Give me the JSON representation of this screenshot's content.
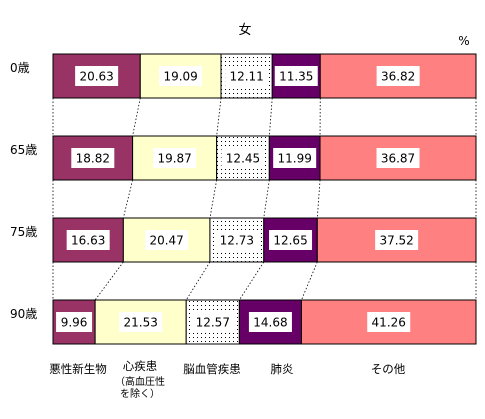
{
  "chart_data": {
    "type": "bar",
    "orientation": "horizontal",
    "stacked": "100%",
    "title": "女",
    "unit": "%",
    "rows": [
      "0歳",
      "65歳",
      "75歳",
      "90歳"
    ],
    "series": [
      {
        "name": "悪性新生物",
        "values": [
          20.63,
          18.82,
          16.63,
          9.96
        ],
        "color": "#993366",
        "pattern": "solid"
      },
      {
        "name": "心疾患",
        "note": "（高血圧性を除く）",
        "values": [
          19.09,
          19.87,
          20.47,
          21.53
        ],
        "color": "#FFFFCC",
        "pattern": "solid"
      },
      {
        "name": "脳血管疾患",
        "values": [
          12.11,
          12.45,
          12.73,
          12.57
        ],
        "color": "#FFFFFF",
        "pattern": "dots"
      },
      {
        "name": "肺炎",
        "values": [
          11.35,
          11.99,
          12.65,
          14.68
        ],
        "color": "#660066",
        "pattern": "solid"
      },
      {
        "name": "その他",
        "values": [
          36.82,
          36.87,
          37.52,
          41.26
        ],
        "color": "#FF8080",
        "pattern": "solid"
      }
    ],
    "xlim": [
      0,
      100
    ],
    "grid": false,
    "legend": "bottom",
    "series_lines": true
  }
}
